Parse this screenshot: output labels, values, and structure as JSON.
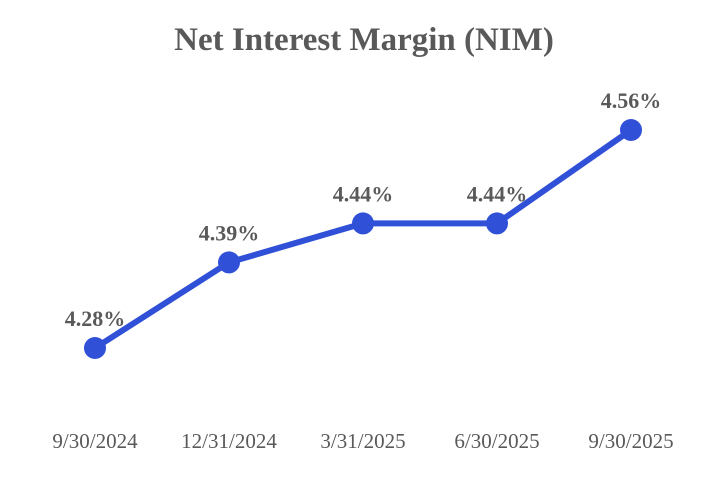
{
  "chart_data": {
    "type": "line",
    "title": "Net Interest Margin (NIM)",
    "categories": [
      "9/30/2024",
      "12/31/2024",
      "3/31/2025",
      "6/30/2025",
      "9/30/2025"
    ],
    "series": [
      {
        "name": "Net Interest Margin (NIM)",
        "values": [
          4.28,
          4.39,
          4.44,
          4.44,
          4.56
        ]
      }
    ],
    "data_labels": [
      "4.28%",
      "4.39%",
      "4.44%",
      "4.44%",
      "4.56%"
    ],
    "xlabel": "",
    "ylabel": "",
    "ylim": [
      4.15,
      4.65
    ],
    "grid": false,
    "legend_position": "none",
    "axes_visible": false,
    "colors": {
      "line": "#3050d8",
      "marker": "#3050d8",
      "title_text": "#595959",
      "data_label_text": "#595959",
      "axis_label_text": "#595959",
      "background": "#ffffff"
    }
  }
}
